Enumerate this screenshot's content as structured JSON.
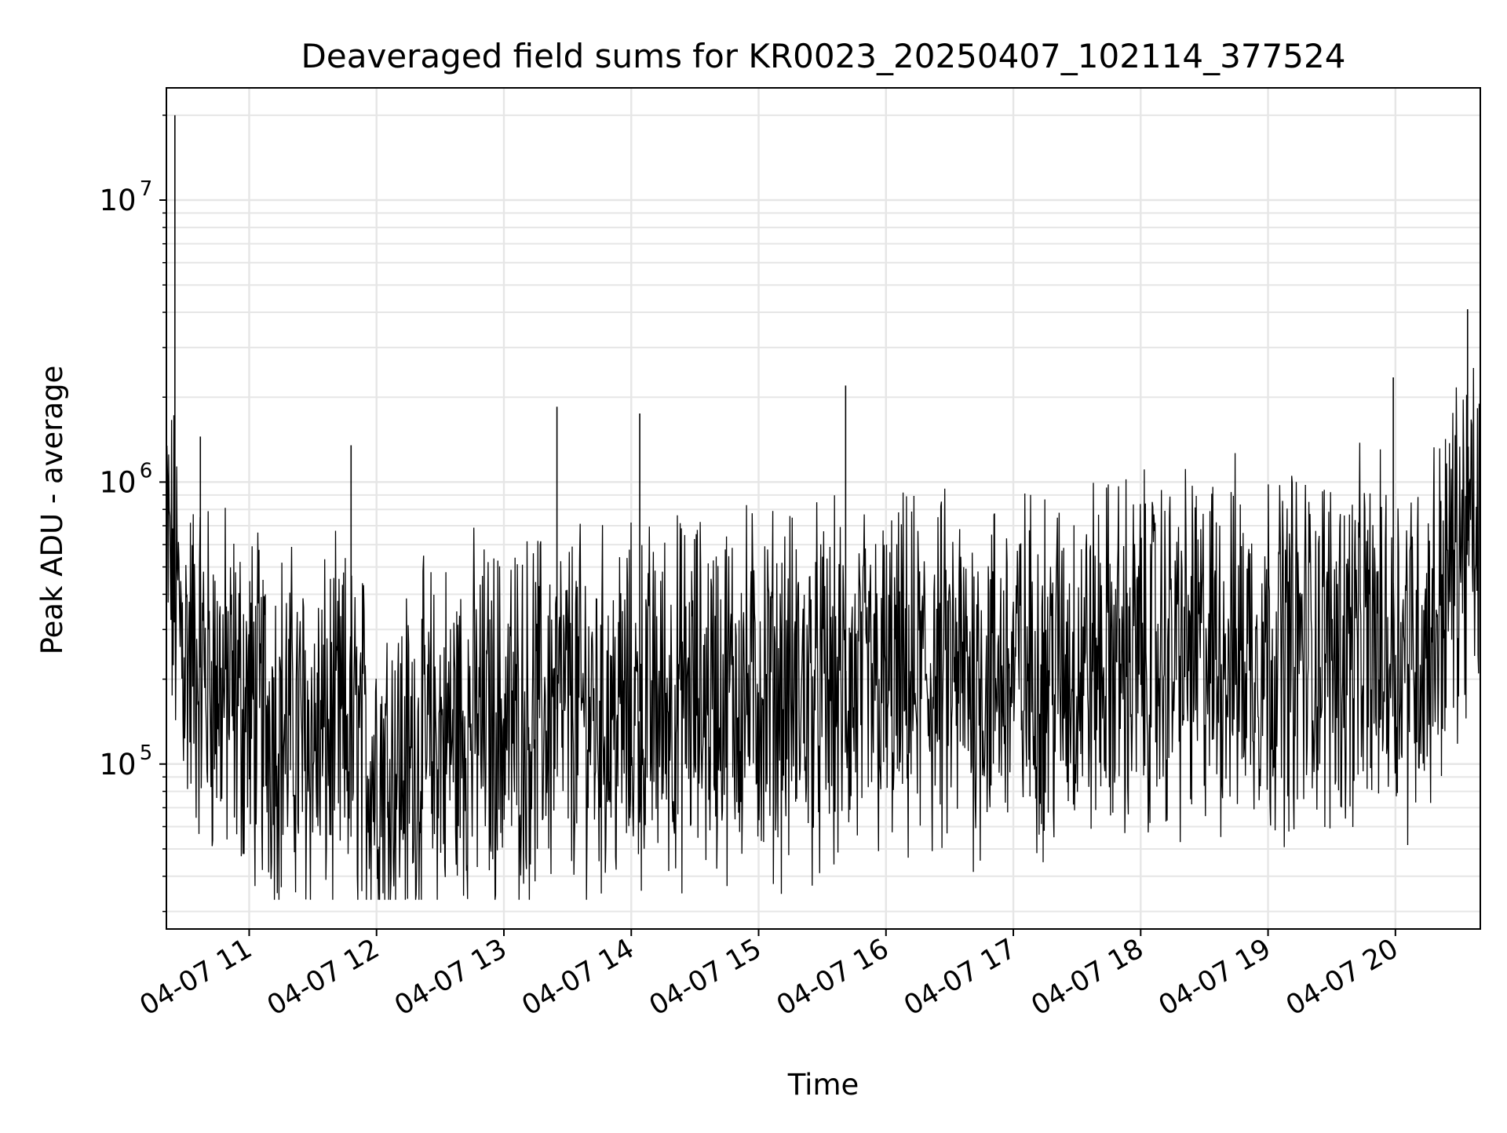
{
  "chart_data": {
    "type": "line",
    "title": "Deaveraged field sums for KR0023_20250407_102114_377524",
    "xlabel": "Time",
    "ylabel": "Peak ADU - average",
    "yscale": "log",
    "ylim": [
      26000,
      25000000
    ],
    "xlim": [
      "2025-04-07 10:21",
      "2025-04-07 20:40"
    ],
    "grid": true,
    "line_color": "#000000",
    "grid_color": "#e6e6e6",
    "x_ticks": [
      "04-07 11",
      "04-07 12",
      "04-07 13",
      "04-07 14",
      "04-07 15",
      "04-07 16",
      "04-07 17",
      "04-07 18",
      "04-07 19",
      "04-07 20"
    ],
    "y_ticks": [
      {
        "value": 100000,
        "base": "10",
        "exp": "5"
      },
      {
        "value": 1000000,
        "base": "10",
        "exp": "6"
      },
      {
        "value": 10000000,
        "base": "10",
        "exp": "7"
      }
    ],
    "series": [
      {
        "x": [
          "2025-04-07 10:21",
          "2025-04-07 10:30",
          "2025-04-07 10:45",
          "2025-04-07 11:00",
          "2025-04-07 11:15",
          "2025-04-07 11:30",
          "2025-04-07 11:45",
          "2025-04-07 12:00",
          "2025-04-07 12:15",
          "2025-04-07 12:30",
          "2025-04-07 12:45",
          "2025-04-07 13:00",
          "2025-04-07 13:15",
          "2025-04-07 13:30",
          "2025-04-07 13:45",
          "2025-04-07 14:00",
          "2025-04-07 14:15",
          "2025-04-07 14:30",
          "2025-04-07 14:45",
          "2025-04-07 15:00",
          "2025-04-07 15:15",
          "2025-04-07 15:30",
          "2025-04-07 15:45",
          "2025-04-07 16:00",
          "2025-04-07 16:15",
          "2025-04-07 16:30",
          "2025-04-07 16:45",
          "2025-04-07 17:00",
          "2025-04-07 17:15",
          "2025-04-07 17:30",
          "2025-04-07 17:45",
          "2025-04-07 18:00",
          "2025-04-07 18:15",
          "2025-04-07 18:30",
          "2025-04-07 18:45",
          "2025-04-07 19:00",
          "2025-04-07 19:15",
          "2025-04-07 19:30",
          "2025-04-07 19:45",
          "2025-04-07 20:00",
          "2025-04-07 20:15",
          "2025-04-07 20:30",
          "2025-04-07 20:40"
        ],
        "values": [
          600000,
          250000,
          190000,
          160000,
          140000,
          120000,
          130000,
          100000,
          100000,
          120000,
          140000,
          140000,
          150000,
          160000,
          150000,
          150000,
          165000,
          175000,
          180000,
          185000,
          180000,
          175000,
          175000,
          185000,
          195000,
          200000,
          205000,
          210000,
          215000,
          225000,
          230000,
          240000,
          245000,
          250000,
          255000,
          255000,
          260000,
          262000,
          262000,
          265000,
          270000,
          600000,
          650000
        ]
      }
    ],
    "spikes": [
      {
        "x": "2025-04-07 10:25",
        "value": 20000000
      },
      {
        "x": "2025-04-07 10:37",
        "value": 1450000
      },
      {
        "x": "2025-04-07 11:48",
        "value": 1350000
      },
      {
        "x": "2025-04-07 13:25",
        "value": 1850000
      },
      {
        "x": "2025-04-07 14:04",
        "value": 1750000
      },
      {
        "x": "2025-04-07 15:41",
        "value": 2200000
      },
      {
        "x": "2025-04-07 19:59",
        "value": 2350000
      },
      {
        "x": "2025-04-07 20:34",
        "value": 4100000
      }
    ]
  }
}
